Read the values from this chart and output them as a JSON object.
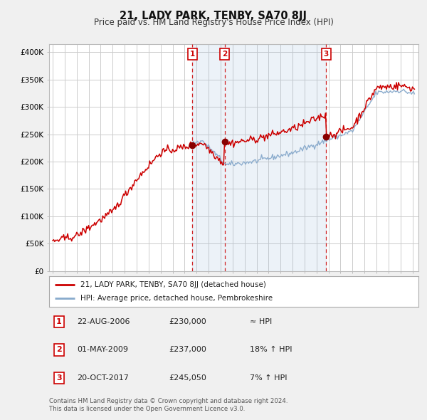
{
  "title": "21, LADY PARK, TENBY, SA70 8JJ",
  "subtitle": "Price paid vs. HM Land Registry's House Price Index (HPI)",
  "ylabel_ticks": [
    "£0",
    "£50K",
    "£100K",
    "£150K",
    "£200K",
    "£250K",
    "£300K",
    "£350K",
    "£400K"
  ],
  "ytick_vals": [
    0,
    50000,
    100000,
    150000,
    200000,
    250000,
    300000,
    350000,
    400000
  ],
  "ylim": [
    0,
    415000
  ],
  "xlim_start": 1994.7,
  "xlim_end": 2025.5,
  "sale_dates": [
    2006.644,
    2009.329,
    2017.802
  ],
  "sale_prices": [
    230000,
    237000,
    245050
  ],
  "sale_labels": [
    "1",
    "2",
    "3"
  ],
  "line_color_red": "#cc0000",
  "line_color_blue": "#88aacc",
  "dot_color": "#880000",
  "vline_color": "#cc0000",
  "shade_color": "#ddeeff",
  "grid_color": "#cccccc",
  "bg_color": "#f0f0f0",
  "plot_bg": "#ffffff",
  "legend_line1": "21, LADY PARK, TENBY, SA70 8JJ (detached house)",
  "legend_line2": "HPI: Average price, detached house, Pembrokeshire",
  "table_data": [
    [
      "1",
      "22-AUG-2006",
      "£230,000",
      "≈ HPI"
    ],
    [
      "2",
      "01-MAY-2009",
      "£237,000",
      "18% ↑ HPI"
    ],
    [
      "3",
      "20-OCT-2017",
      "£245,050",
      "7% ↑ HPI"
    ]
  ],
  "footer": "Contains HM Land Registry data © Crown copyright and database right 2024.\nThis data is licensed under the Open Government Licence v3.0."
}
